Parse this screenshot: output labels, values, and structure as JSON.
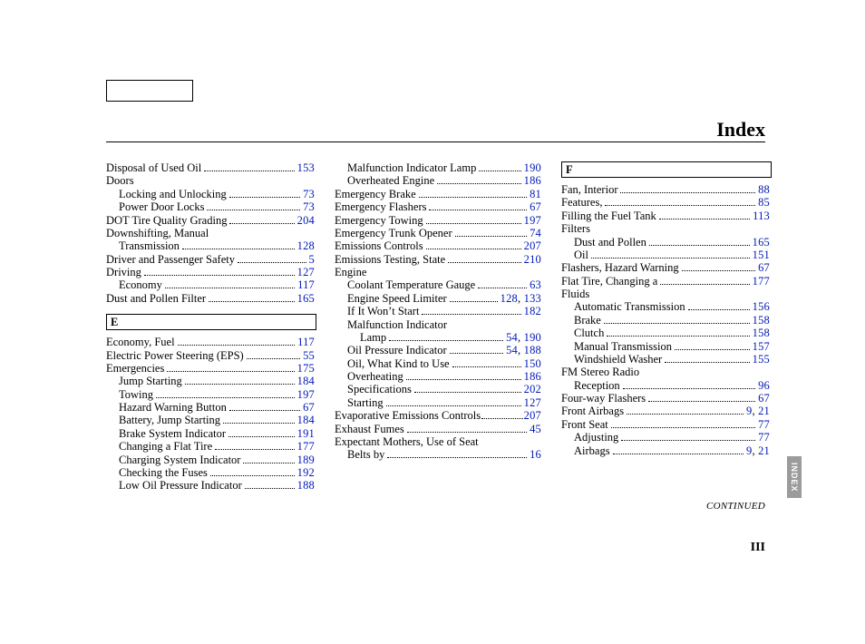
{
  "title": "Index",
  "continued": "CONTINUED",
  "pageNumber": "III",
  "sideTab": "INDEX",
  "colors": {
    "link": "#0018b8",
    "text": "#000000",
    "tabBg": "#9b9b9b",
    "tabFg": "#ffffff"
  },
  "columns": [
    {
      "items": [
        {
          "type": "entry",
          "label": "Disposal of Used Oil",
          "pages": [
            "153"
          ]
        },
        {
          "type": "entry",
          "label": "Doors",
          "nodots": true
        },
        {
          "type": "sub",
          "label": "Locking and Unlocking",
          "pages": [
            "73"
          ]
        },
        {
          "type": "sub",
          "label": "Power Door Locks",
          "pages": [
            "73"
          ]
        },
        {
          "type": "entry",
          "label": "DOT Tire Quality Grading",
          "pages": [
            "204"
          ]
        },
        {
          "type": "entry",
          "label": "Downshifting, Manual",
          "nodots": true
        },
        {
          "type": "sub",
          "label": "Transmission",
          "pages": [
            "128"
          ]
        },
        {
          "type": "entry",
          "label": "Driver and Passenger Safety",
          "pages": [
            "5"
          ]
        },
        {
          "type": "entry",
          "label": "Driving",
          "pages": [
            "127"
          ]
        },
        {
          "type": "sub",
          "label": "Economy",
          "pages": [
            "117"
          ]
        },
        {
          "type": "entry",
          "label": "Dust and Pollen Filter",
          "pages": [
            "165"
          ]
        },
        {
          "type": "header",
          "label": "E"
        },
        {
          "type": "entry",
          "label": "Economy, Fuel",
          "pages": [
            "117"
          ]
        },
        {
          "type": "entry",
          "label": "Electric Power Steering (EPS)",
          "pages": [
            "55"
          ]
        },
        {
          "type": "entry",
          "label": "Emergencies",
          "pages": [
            "175"
          ]
        },
        {
          "type": "sub",
          "label": "Jump Starting",
          "pages": [
            "184"
          ]
        },
        {
          "type": "sub",
          "label": "Towing",
          "pages": [
            "197"
          ]
        },
        {
          "type": "sub",
          "label": "Hazard Warning Button",
          "pages": [
            "67"
          ]
        },
        {
          "type": "sub",
          "label": "Battery, Jump Starting",
          "pages": [
            "184"
          ]
        },
        {
          "type": "sub",
          "label": "Brake System Indicator",
          "pages": [
            "191"
          ]
        },
        {
          "type": "sub",
          "label": "Changing a Flat Tire",
          "pages": [
            "177"
          ]
        },
        {
          "type": "sub",
          "label": "Charging System Indicator",
          "pages": [
            "189"
          ]
        },
        {
          "type": "sub",
          "label": "Checking the Fuses",
          "pages": [
            "192"
          ]
        },
        {
          "type": "sub",
          "label": "Low Oil Pressure Indicator",
          "pages": [
            "188"
          ]
        }
      ]
    },
    {
      "items": [
        {
          "type": "sub",
          "label": "Malfunction Indicator Lamp",
          "pages": [
            "190"
          ]
        },
        {
          "type": "sub",
          "label": "Overheated Engine",
          "pages": [
            "186"
          ]
        },
        {
          "type": "entry",
          "label": "Emergency Brake",
          "pages": [
            "81"
          ]
        },
        {
          "type": "entry",
          "label": "Emergency Flashers",
          "pages": [
            "67"
          ]
        },
        {
          "type": "entry",
          "label": "Emergency Towing",
          "pages": [
            "197"
          ]
        },
        {
          "type": "entry",
          "label": "Emergency Trunk Opener",
          "pages": [
            "74"
          ]
        },
        {
          "type": "entry",
          "label": "Emissions Controls",
          "pages": [
            "207"
          ]
        },
        {
          "type": "entry",
          "label": "Emissions Testing, State",
          "pages": [
            "210"
          ]
        },
        {
          "type": "entry",
          "label": "Engine",
          "nodots": true
        },
        {
          "type": "sub",
          "label": "Coolant Temperature Gauge",
          "pages": [
            "63"
          ]
        },
        {
          "type": "sub",
          "label": "Engine Speed Limiter",
          "pages": [
            "128",
            "133"
          ]
        },
        {
          "type": "sub",
          "label": "If It Won’t Start",
          "pages": [
            "182"
          ]
        },
        {
          "type": "sub",
          "label": "Malfunction Indicator",
          "nodots": true
        },
        {
          "type": "subsub",
          "label": "Lamp",
          "pages": [
            "54",
            "190"
          ]
        },
        {
          "type": "sub",
          "label": "Oil Pressure Indicator",
          "pages": [
            "54",
            "188"
          ]
        },
        {
          "type": "sub",
          "label": "Oil, What Kind to Use",
          "pages": [
            "150"
          ]
        },
        {
          "type": "sub",
          "label": "Overheating",
          "pages": [
            "186"
          ]
        },
        {
          "type": "sub",
          "label": "Specifications",
          "pages": [
            "202"
          ]
        },
        {
          "type": "sub",
          "label": "Starting",
          "pages": [
            "127"
          ]
        },
        {
          "type": "entry",
          "label": "Evaporative Emissions Controls",
          "pages": [
            "207"
          ],
          "tight": true
        },
        {
          "type": "entry",
          "label": "Exhaust Fumes",
          "pages": [
            "45"
          ]
        },
        {
          "type": "entry",
          "label": "Expectant Mothers, Use of Seat",
          "nodots": true
        },
        {
          "type": "sub",
          "label": "Belts by",
          "pages": [
            "16"
          ]
        }
      ]
    },
    {
      "items": [
        {
          "type": "header",
          "label": "F",
          "first": true
        },
        {
          "type": "entry",
          "label": "Fan, Interior",
          "pages": [
            "88"
          ]
        },
        {
          "type": "entry",
          "label": "Features,",
          "pages": [
            "85"
          ]
        },
        {
          "type": "entry",
          "label": "Filling the Fuel Tank",
          "pages": [
            "113"
          ]
        },
        {
          "type": "entry",
          "label": "Filters",
          "nodots": true
        },
        {
          "type": "sub",
          "label": "Dust and Pollen",
          "pages": [
            "165"
          ]
        },
        {
          "type": "sub",
          "label": "Oil",
          "pages": [
            "151"
          ]
        },
        {
          "type": "entry",
          "label": "Flashers, Hazard Warning",
          "pages": [
            "67"
          ]
        },
        {
          "type": "entry",
          "label": "Flat Tire, Changing a",
          "pages": [
            "177"
          ]
        },
        {
          "type": "entry",
          "label": "Fluids",
          "nodots": true
        },
        {
          "type": "sub",
          "label": "Automatic Transmission",
          "pages": [
            "156"
          ]
        },
        {
          "type": "sub",
          "label": "Brake",
          "pages": [
            "158"
          ]
        },
        {
          "type": "sub",
          "label": "Clutch",
          "pages": [
            "158"
          ]
        },
        {
          "type": "sub",
          "label": "Manual Transmission",
          "pages": [
            "157"
          ]
        },
        {
          "type": "sub",
          "label": "Windshield Washer",
          "pages": [
            "155"
          ]
        },
        {
          "type": "entry",
          "label": "FM Stereo Radio",
          "nodots": true
        },
        {
          "type": "sub",
          "label": "Reception",
          "pages": [
            "96"
          ]
        },
        {
          "type": "entry",
          "label": "Four-way Flashers",
          "pages": [
            "67"
          ]
        },
        {
          "type": "entry",
          "label": "Front Airbags",
          "pages": [
            "9",
            "21"
          ]
        },
        {
          "type": "entry",
          "label": "Front Seat",
          "pages": [
            "77"
          ]
        },
        {
          "type": "sub",
          "label": "Adjusting",
          "pages": [
            "77"
          ]
        },
        {
          "type": "sub",
          "label": "Airbags",
          "pages": [
            "9",
            "21"
          ]
        }
      ]
    }
  ]
}
